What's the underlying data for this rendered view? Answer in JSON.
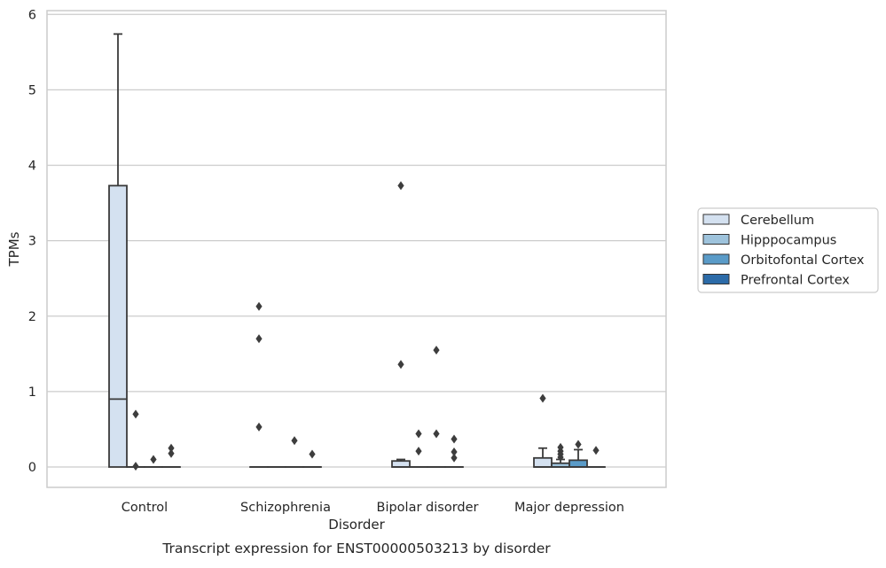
{
  "chart_data": {
    "type": "boxplot",
    "title": "",
    "caption": "Transcript expression for ENST00000503213 by disorder",
    "xlabel": "Disorder",
    "ylabel": "TPMs",
    "ylim": [
      -0.27,
      6.05
    ],
    "yticks": [
      0,
      1,
      2,
      3,
      4,
      5,
      6
    ],
    "grid": true,
    "legend_position": "right, outside plot",
    "categories": [
      "Control",
      "Schizophrenia",
      "Bipolar disorder",
      "Major depression"
    ],
    "series": [
      {
        "name": "Cerebellum",
        "color": "#d4e1f0",
        "boxes": [
          {
            "q1": 0.0,
            "median": 0.9,
            "q3": 3.73,
            "whisker_low": 0.0,
            "whisker_high": 5.74,
            "outliers": []
          },
          {
            "q1": 0.0,
            "median": 0.0,
            "q3": 0.0,
            "whisker_low": 0.0,
            "whisker_high": 0.0,
            "outliers": [
              0.53,
              1.7,
              2.13
            ]
          },
          {
            "q1": 0.0,
            "median": 0.0,
            "q3": 0.08,
            "whisker_low": 0.0,
            "whisker_high": 0.1,
            "outliers": [
              1.36,
              3.73
            ]
          },
          {
            "q1": 0.0,
            "median": 0.0,
            "q3": 0.12,
            "whisker_low": 0.0,
            "whisker_high": 0.25,
            "outliers": [
              0.91
            ]
          }
        ]
      },
      {
        "name": "Hipppocampus",
        "color": "#9ec3dc",
        "boxes": [
          {
            "q1": 0.0,
            "median": 0.0,
            "q3": 0.0,
            "whisker_low": 0.0,
            "whisker_high": 0.0,
            "outliers": [
              0.01,
              0.7
            ]
          },
          {
            "q1": 0.0,
            "median": 0.0,
            "q3": 0.0,
            "whisker_low": 0.0,
            "whisker_high": 0.0,
            "outliers": []
          },
          {
            "q1": 0.0,
            "median": 0.0,
            "q3": 0.0,
            "whisker_low": 0.0,
            "whisker_high": 0.0,
            "outliers": [
              0.21,
              0.44
            ]
          },
          {
            "q1": 0.0,
            "median": 0.0,
            "q3": 0.05,
            "whisker_low": 0.0,
            "whisker_high": 0.1,
            "outliers": [
              0.13,
              0.17,
              0.21,
              0.26
            ]
          }
        ]
      },
      {
        "name": "Orbitofontal Cortex",
        "color": "#5a9bc8",
        "boxes": [
          {
            "q1": 0.0,
            "median": 0.0,
            "q3": 0.0,
            "whisker_low": 0.0,
            "whisker_high": 0.0,
            "outliers": [
              0.1
            ]
          },
          {
            "q1": 0.0,
            "median": 0.0,
            "q3": 0.0,
            "whisker_low": 0.0,
            "whisker_high": 0.0,
            "outliers": [
              0.35
            ]
          },
          {
            "q1": 0.0,
            "median": 0.0,
            "q3": 0.0,
            "whisker_low": 0.0,
            "whisker_high": 0.0,
            "outliers": [
              0.44,
              1.55
            ]
          },
          {
            "q1": 0.0,
            "median": 0.0,
            "q3": 0.09,
            "whisker_low": 0.0,
            "whisker_high": 0.23,
            "outliers": [
              0.3
            ]
          }
        ]
      },
      {
        "name": "Prefrontal Cortex",
        "color": "#2c6ba8",
        "boxes": [
          {
            "q1": 0.0,
            "median": 0.0,
            "q3": 0.0,
            "whisker_low": 0.0,
            "whisker_high": 0.0,
            "outliers": [
              0.18,
              0.25
            ]
          },
          {
            "q1": 0.0,
            "median": 0.0,
            "q3": 0.0,
            "whisker_low": 0.0,
            "whisker_high": 0.0,
            "outliers": [
              0.17
            ]
          },
          {
            "q1": 0.0,
            "median": 0.0,
            "q3": 0.0,
            "whisker_low": 0.0,
            "whisker_high": 0.0,
            "outliers": [
              0.12,
              0.2,
              0.37
            ]
          },
          {
            "q1": 0.0,
            "median": 0.0,
            "q3": 0.0,
            "whisker_low": 0.0,
            "whisker_high": 0.0,
            "outliers": [
              0.22
            ]
          }
        ]
      }
    ]
  }
}
